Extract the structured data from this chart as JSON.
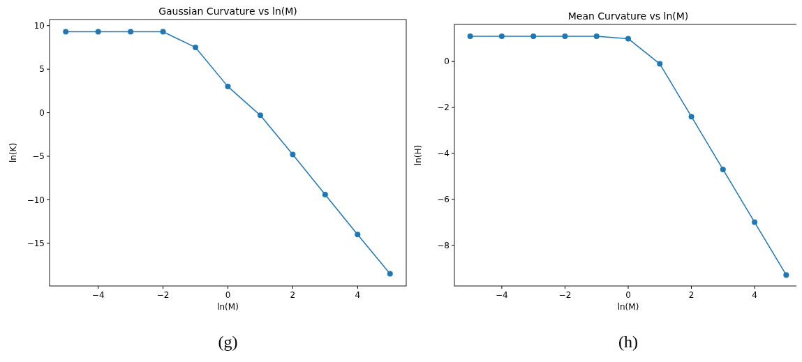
{
  "chart_data": [
    {
      "type": "line",
      "title": "Gaussian Curvature vs ln(M)",
      "xlabel": "ln(M)",
      "ylabel": "ln(K)",
      "x": [
        -5,
        -4,
        -3,
        -2,
        -1,
        0,
        1,
        2,
        3,
        4,
        5
      ],
      "series": [
        {
          "color": "#1f77b4",
          "values": [
            9.3,
            9.3,
            9.3,
            9.3,
            7.5,
            3.0,
            -0.3,
            -4.8,
            -9.4,
            -14.0,
            -18.5
          ]
        }
      ],
      "xlim": [
        -5.5,
        5.5
      ],
      "xticks": [
        -4,
        -2,
        0,
        2,
        4
      ],
      "ylim": [
        -19.9,
        10.7
      ],
      "yticks": [
        -15,
        -10,
        -5,
        0,
        5,
        10
      ],
      "marker": "circle",
      "annotations": [
        "(g)"
      ]
    },
    {
      "type": "line",
      "title": "Mean Curvature vs ln(M)",
      "xlabel": "ln(M)",
      "ylabel": "ln(H)",
      "x": [
        -5,
        -4,
        -3,
        -2,
        -1,
        0,
        1,
        2,
        3,
        4,
        5
      ],
      "series": [
        {
          "color": "#1f77b4",
          "values": [
            1.1,
            1.1,
            1.1,
            1.1,
            1.1,
            1.0,
            -0.1,
            -2.4,
            -4.7,
            -7.0,
            -9.3
          ]
        }
      ],
      "xlim": [
        -5.5,
        5.5
      ],
      "xticks": [
        -4,
        -2,
        0,
        2,
        4
      ],
      "ylim": [
        -9.78,
        1.62
      ],
      "yticks": [
        -8,
        -6,
        -4,
        -2,
        0
      ],
      "marker": "circle",
      "annotations": [
        "(h)"
      ]
    }
  ]
}
